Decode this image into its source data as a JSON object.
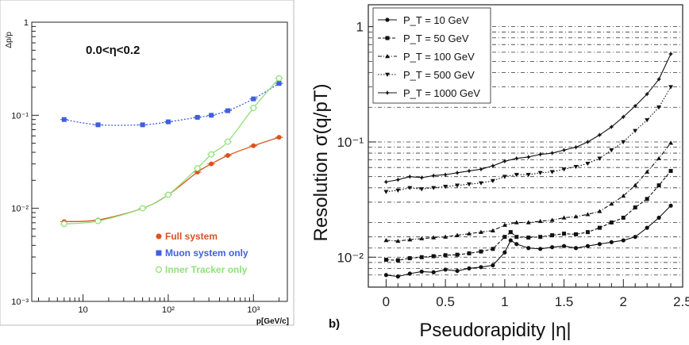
{
  "chart_data": [
    {
      "type": "line",
      "title": "",
      "annotation": "0.0<η<0.2",
      "xlabel": "p[GeV/c]",
      "ylabel": "Δp/p",
      "xscale": "log",
      "yscale": "log",
      "xlim": [
        2.5,
        2500
      ],
      "ylim": [
        0.001,
        1
      ],
      "xtick_labels": [
        "10",
        "10²",
        "10³"
      ],
      "ytick_labels": [
        "10⁻³",
        "10⁻²",
        "10⁻¹",
        "1"
      ],
      "legend_position": "lower-right",
      "series": [
        {
          "name": "Full system",
          "color": "#d9541c",
          "marker": "circle",
          "x": [
            6,
            15,
            50,
            100,
            220,
            320,
            500,
            1000,
            2000
          ],
          "y": [
            0.0072,
            0.0075,
            0.01,
            0.014,
            0.0245,
            0.03,
            0.037,
            0.047,
            0.058
          ]
        },
        {
          "name": "Muon system only",
          "color": "#3f5fdc",
          "marker": "square",
          "x": [
            6,
            15,
            50,
            100,
            220,
            320,
            500,
            1000,
            2000
          ],
          "y": [
            0.09,
            0.079,
            0.079,
            0.085,
            0.095,
            0.1,
            0.112,
            0.15,
            0.22
          ]
        },
        {
          "name": "Inner Tracker only",
          "color": "#8fe07a",
          "marker": "open-circle",
          "x": [
            6,
            15,
            50,
            100,
            220,
            320,
            500,
            1000,
            2000
          ],
          "y": [
            0.0068,
            0.0073,
            0.01,
            0.014,
            0.027,
            0.038,
            0.052,
            0.12,
            0.25
          ]
        }
      ]
    },
    {
      "type": "line",
      "title": "",
      "panel_label": "b)",
      "xlabel": "Pseudorapidity |η|",
      "ylabel": "Resolution σ(q/pT)",
      "yscale": "log",
      "xlim": [
        -0.15,
        2.5
      ],
      "ylim": [
        0.0055,
        1.55
      ],
      "xtick_labels": [
        "0",
        "0.5",
        "1",
        "1.5",
        "2",
        "2.5"
      ],
      "ytick_labels": [
        "10⁻²",
        "10⁻¹",
        "1"
      ],
      "grid_y": [
        0.007,
        0.008,
        0.009,
        0.01,
        0.012,
        0.015,
        0.02,
        0.03,
        0.04,
        0.05,
        0.06,
        0.07,
        0.08,
        0.09,
        0.1,
        0.2,
        0.3,
        0.4,
        0.5,
        0.6,
        0.7,
        0.8,
        0.9,
        1.0
      ],
      "legend_position": "top-left",
      "series": [
        {
          "name": "P_T = 10 GeV",
          "marker": "circle",
          "dash": "solid",
          "x": [
            0,
            0.1,
            0.2,
            0.3,
            0.4,
            0.5,
            0.6,
            0.7,
            0.8,
            0.9,
            1.0,
            1.05,
            1.1,
            1.2,
            1.3,
            1.4,
            1.5,
            1.6,
            1.7,
            1.8,
            1.9,
            2.0,
            2.1,
            2.2,
            2.3,
            2.4
          ],
          "y": [
            0.007,
            0.0068,
            0.0072,
            0.0075,
            0.0074,
            0.0078,
            0.0076,
            0.008,
            0.0082,
            0.0085,
            0.011,
            0.014,
            0.013,
            0.012,
            0.0118,
            0.0122,
            0.0125,
            0.012,
            0.0125,
            0.013,
            0.0135,
            0.014,
            0.015,
            0.018,
            0.022,
            0.028
          ]
        },
        {
          "name": "P_T = 50 GeV",
          "marker": "square",
          "dash": "dashed",
          "x": [
            0,
            0.1,
            0.2,
            0.3,
            0.4,
            0.5,
            0.6,
            0.7,
            0.8,
            0.9,
            1.0,
            1.05,
            1.1,
            1.2,
            1.3,
            1.4,
            1.5,
            1.6,
            1.7,
            1.8,
            1.9,
            2.0,
            2.1,
            2.2,
            2.3,
            2.4
          ],
          "y": [
            0.0095,
            0.0094,
            0.0098,
            0.01,
            0.0102,
            0.0104,
            0.0105,
            0.0108,
            0.0112,
            0.0118,
            0.015,
            0.0165,
            0.015,
            0.0148,
            0.015,
            0.0155,
            0.016,
            0.0158,
            0.0165,
            0.018,
            0.02,
            0.022,
            0.027,
            0.032,
            0.042,
            0.056
          ]
        },
        {
          "name": "P_T = 100 GeV",
          "marker": "triangle-up",
          "dash": "dashdot",
          "x": [
            0,
            0.1,
            0.2,
            0.3,
            0.4,
            0.5,
            0.6,
            0.7,
            0.8,
            0.9,
            1.0,
            1.1,
            1.2,
            1.3,
            1.4,
            1.5,
            1.6,
            1.7,
            1.8,
            1.9,
            2.0,
            2.1,
            2.2,
            2.3,
            2.4
          ],
          "y": [
            0.014,
            0.0138,
            0.0142,
            0.0145,
            0.0148,
            0.015,
            0.0155,
            0.016,
            0.0165,
            0.017,
            0.019,
            0.02,
            0.02,
            0.0205,
            0.021,
            0.022,
            0.0225,
            0.0235,
            0.025,
            0.029,
            0.034,
            0.042,
            0.055,
            0.072,
            0.098
          ]
        },
        {
          "name": "P_T = 500 GeV",
          "marker": "triangle-down",
          "dash": "dotted",
          "x": [
            0,
            0.1,
            0.2,
            0.3,
            0.4,
            0.5,
            0.6,
            0.7,
            0.8,
            0.9,
            1.0,
            1.1,
            1.2,
            1.3,
            1.4,
            1.5,
            1.6,
            1.7,
            1.8,
            1.9,
            2.0,
            2.1,
            2.2,
            2.3,
            2.4
          ],
          "y": [
            0.037,
            0.038,
            0.04,
            0.039,
            0.04,
            0.041,
            0.042,
            0.043,
            0.044,
            0.046,
            0.05,
            0.052,
            0.052,
            0.054,
            0.055,
            0.058,
            0.061,
            0.065,
            0.072,
            0.085,
            0.1,
            0.125,
            0.155,
            0.2,
            0.3
          ]
        },
        {
          "name": "P_T = 1000 GeV",
          "marker": "star",
          "dash": "solid",
          "x": [
            0,
            0.1,
            0.2,
            0.3,
            0.4,
            0.5,
            0.6,
            0.7,
            0.8,
            0.9,
            1.0,
            1.1,
            1.2,
            1.3,
            1.4,
            1.5,
            1.6,
            1.7,
            1.8,
            1.9,
            2.0,
            2.1,
            2.2,
            2.3,
            2.4
          ],
          "y": [
            0.045,
            0.047,
            0.05,
            0.049,
            0.051,
            0.052,
            0.054,
            0.056,
            0.058,
            0.062,
            0.068,
            0.072,
            0.074,
            0.078,
            0.08,
            0.085,
            0.09,
            0.1,
            0.115,
            0.135,
            0.165,
            0.205,
            0.26,
            0.35,
            0.58
          ]
        }
      ]
    }
  ]
}
